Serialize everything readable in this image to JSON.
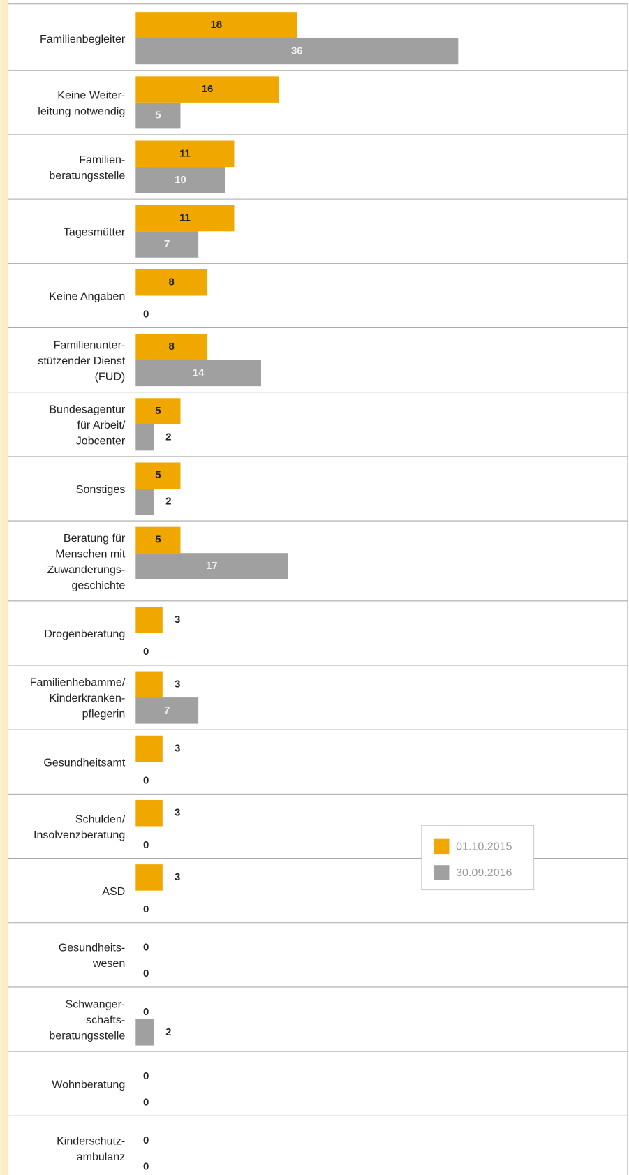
{
  "chart_data": {
    "type": "hbar",
    "categories": [
      "Familienbegleiter",
      "Keine Weiter-\nleitung notwendig",
      "Familien-\nberatungsstelle",
      "Tagesmütter",
      "Keine Angaben",
      "Familienunter-\nstützender Dienst\n(FUD)",
      "Bundesagentur\nfür Arbeit/\nJobcenter",
      "Sonstiges",
      "Beratung für\nMenschen mit\nZuwanderungs-\ngeschichte",
      "Drogenberatung",
      "Familienhebamme/\nKinderkranken-\npflegerin",
      "Gesundheitsamt",
      "Schulden/\nInsolvenzberatung",
      "ASD",
      "Gesundheits-\nwesen",
      "Schwanger-\nschafts-\nberatungsstelle",
      "Wohnberatung",
      "Kinderschutz-\nambulanz"
    ],
    "series": [
      {
        "name": "01.10.2015",
        "color": "#f0a800",
        "values": [
          18,
          16,
          11,
          11,
          8,
          8,
          5,
          5,
          5,
          3,
          3,
          3,
          3,
          3,
          0,
          0,
          0,
          0
        ]
      },
      {
        "name": "30.09.2016",
        "color": "#a0a0a0",
        "values": [
          36,
          5,
          10,
          7,
          0,
          14,
          2,
          2,
          17,
          0,
          7,
          0,
          0,
          0,
          0,
          2,
          0,
          0
        ]
      }
    ]
  }
}
